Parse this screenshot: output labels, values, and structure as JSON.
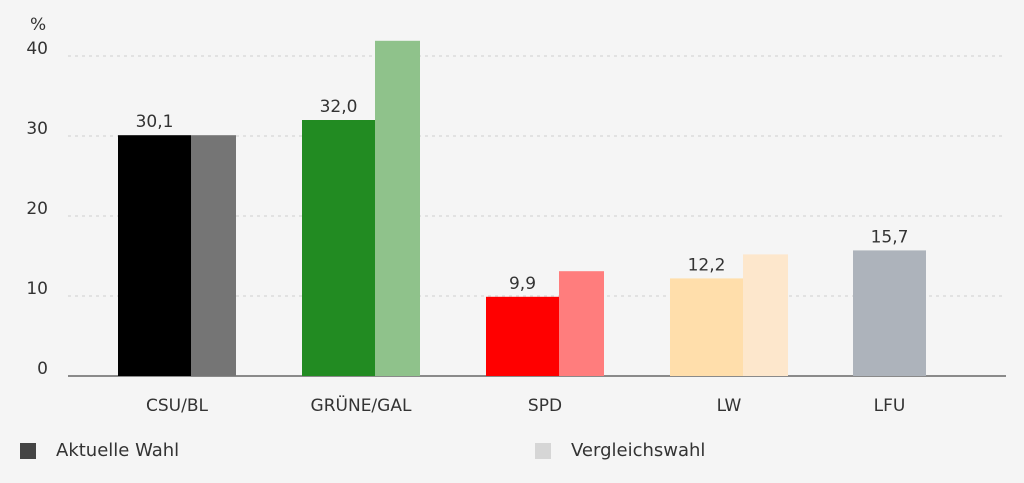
{
  "chart_data": {
    "type": "bar",
    "unit": "%",
    "categories": [
      "CSU/BL",
      "GRÜNE/GAL",
      "SPD",
      "LW",
      "LFU"
    ],
    "series": [
      {
        "name": "Aktuelle Wahl",
        "values": [
          30.1,
          32.0,
          9.9,
          12.2,
          15.7
        ],
        "value_labels": [
          "30,1",
          "32,0",
          "9,9",
          "12,2",
          "15,7"
        ],
        "colors": [
          "#000000",
          "#228b22",
          "#ff0000",
          "#ffdeab",
          "#adb3bb"
        ]
      },
      {
        "name": "Vergleichswahl",
        "values": [
          30.1,
          41.9,
          13.1,
          15.2,
          null
        ],
        "colors": [
          "#757575",
          "#8fc28b",
          "#ff7d7d",
          "#fde7cc",
          null
        ]
      }
    ],
    "yticks": [
      0,
      10,
      20,
      30,
      40
    ],
    "ylim": [
      0,
      43
    ],
    "grid": true,
    "legend_position": "bottom-left"
  },
  "legend": {
    "items": [
      {
        "label": "Aktuelle Wahl",
        "color": "#444444"
      },
      {
        "label": "Vergleichswahl",
        "color": "#d6d6d6"
      }
    ]
  }
}
